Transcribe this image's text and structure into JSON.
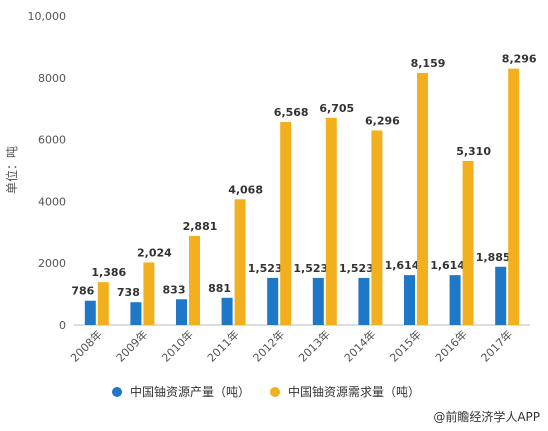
{
  "chart_data": {
    "type": "bar",
    "categories": [
      "2008年",
      "2009年",
      "2010年",
      "2011年",
      "2012年",
      "2013年",
      "2014年",
      "2015年",
      "2016年",
      "2017年"
    ],
    "series": [
      {
        "name": "中国铀资源产量（吨）",
        "color": "#1f77c8",
        "values": [
          786,
          738,
          833,
          881,
          1523,
          1523,
          1523,
          1614,
          1614,
          1885
        ]
      },
      {
        "name": "中国铀资源需求量（吨）",
        "color": "#f2b01e",
        "values": [
          1386,
          2024,
          2881,
          4068,
          6568,
          6705,
          6296,
          8159,
          5310,
          8296
        ]
      }
    ],
    "data_labels": {
      "产量": [
        "786",
        "738",
        "833",
        "881",
        "1,523",
        "1,523",
        "1,523",
        "1,614",
        "1,614",
        "1,885"
      ],
      "需求量": [
        "1,386",
        "2,024",
        "2,881",
        "4,068",
        "6,568",
        "6,705",
        "6,296",
        "8,159",
        "5,310",
        "8,296"
      ]
    },
    "ylabel": "单位：吨",
    "yticks": [
      "0",
      "2000",
      "4000",
      "6000",
      "8000",
      "10,000"
    ],
    "ylim": [
      0,
      10000
    ],
    "legend_position": "bottom",
    "grid": false
  },
  "source_credit": "@前瞻经济学人APP"
}
